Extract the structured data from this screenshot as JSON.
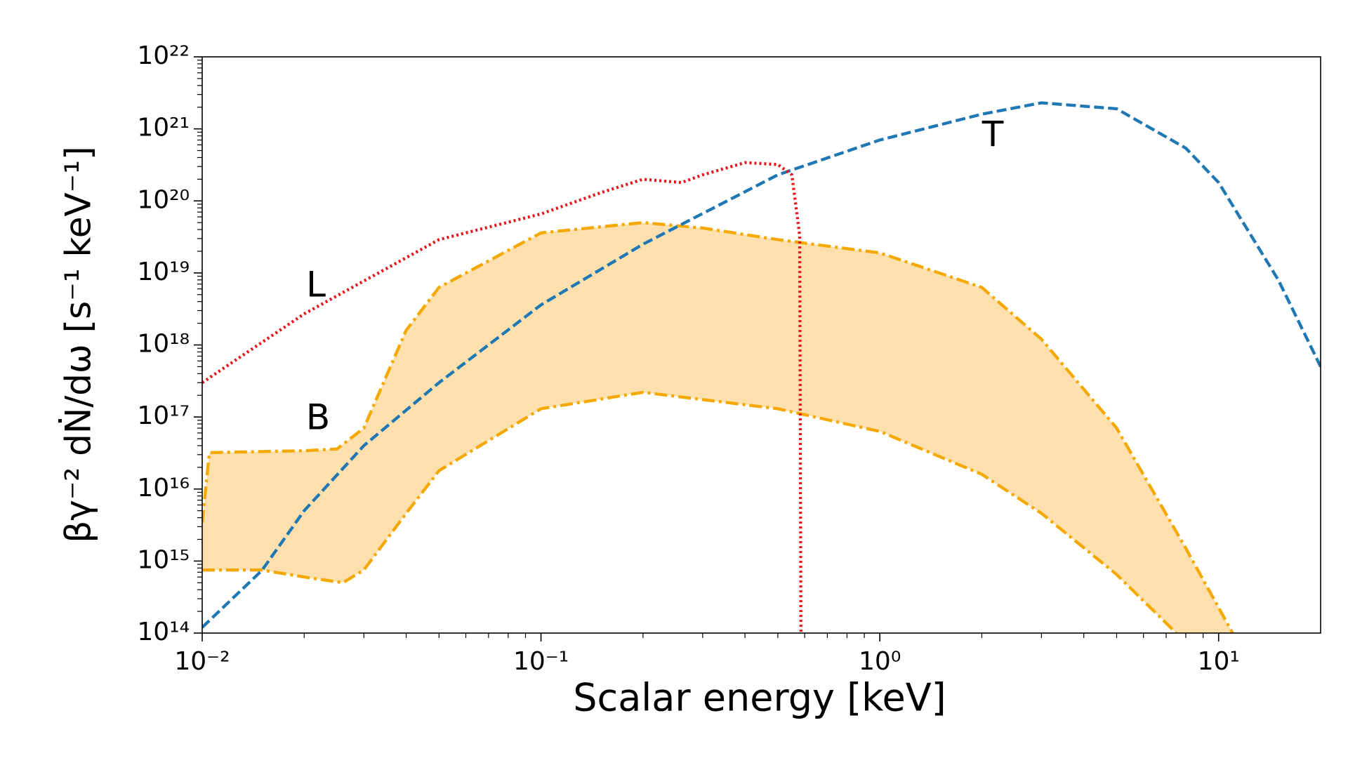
{
  "chart_data": {
    "type": "line",
    "x_label": "Scalar energy [keV]",
    "y_label": "βγ⁻² dṄ/dω [s⁻¹ keV⁻¹]",
    "x_scale": "log",
    "y_scale": "log",
    "xlim": [
      0.01,
      20
    ],
    "ylim": [
      100000000000000.0,
      1e+22
    ],
    "xticks": [
      {
        "value": 0.01,
        "label": "10⁻²"
      },
      {
        "value": 0.1,
        "label": "10⁻¹"
      },
      {
        "value": 1,
        "label": "10⁰"
      },
      {
        "value": 10,
        "label": "10¹"
      }
    ],
    "yticks": [
      {
        "value": 100000000000000.0,
        "label": "10¹⁴"
      },
      {
        "value": 1000000000000000.0,
        "label": "10¹⁵"
      },
      {
        "value": 1e+16,
        "label": "10¹⁶"
      },
      {
        "value": 1e+17,
        "label": "10¹⁷"
      },
      {
        "value": 1e+18,
        "label": "10¹⁸"
      },
      {
        "value": 1e+19,
        "label": "10¹⁹"
      },
      {
        "value": 1e+20,
        "label": "10²⁰"
      },
      {
        "value": 1e+21,
        "label": "10²¹"
      },
      {
        "value": 1e+22,
        "label": "10²²"
      }
    ],
    "band": {
      "fill": "#fde0ad",
      "color": "#f5a800",
      "style": "dashdot",
      "upper": {
        "x": [
          0.01,
          0.0105,
          0.02,
          0.025,
          0.03,
          0.04,
          0.05,
          0.1,
          0.2,
          0.3,
          0.5,
          1,
          2,
          3,
          5,
          8,
          11
        ],
        "values": [
          3400000000000000.0,
          3.2e+16,
          3.4e+16,
          3.6e+16,
          7e+16,
          1.6e+18,
          6.3e+18,
          3.6e+19,
          5e+19,
          4.2e+19,
          2.9e+19,
          1.9e+19,
          6.3e+18,
          1.2e+18,
          7e+16,
          1500000000000000.0,
          100000000000000.0
        ]
      },
      "lower": {
        "x": [
          0.01,
          0.015,
          0.02,
          0.026,
          0.03,
          0.04,
          0.05,
          0.1,
          0.2,
          0.5,
          1,
          2,
          3,
          5,
          7.5
        ],
        "values": [
          750000000000000.0,
          750000000000000.0,
          600000000000000.0,
          500000000000000.0,
          750000000000000.0,
          4600000000000000.0,
          1.8e+16,
          1.3e+17,
          2.2e+17,
          1.3e+17,
          6.3e+16,
          1.6e+16,
          4600000000000000.0,
          650000000000000.0,
          100000000000000.0
        ]
      }
    },
    "series": [
      {
        "color": "#1f77b4",
        "style": "dashed",
        "x": [
          0.01,
          0.015,
          0.02,
          0.03,
          0.05,
          0.1,
          0.2,
          0.5,
          1,
          2,
          3,
          5,
          8,
          10,
          15,
          20
        ],
        "values": [
          120000000000000.0,
          740000000000000.0,
          5000000000000000.0,
          4e+16,
          3e+17,
          3.6e+18,
          2.5e+19,
          2.3e+20,
          7e+20,
          1.6e+21,
          2.3e+21,
          1.9e+21,
          5.4e+20,
          1.8e+20,
          8e+18,
          5e+17
        ]
      },
      {
        "color": "#e8161b",
        "style": "dotted",
        "x": [
          0.01,
          0.02,
          0.05,
          0.1,
          0.15,
          0.2,
          0.26,
          0.3,
          0.4,
          0.5,
          0.55,
          0.58,
          0.585
        ],
        "values": [
          3e+17,
          2.7e+18,
          2.9e+19,
          6.6e+19,
          1.3e+20,
          2e+20,
          1.8e+20,
          2.3e+20,
          3.4e+20,
          3.2e+20,
          2.3e+20,
          3.3e+19,
          100000000000000.0
        ]
      }
    ],
    "annotations": [
      "T",
      "L",
      "B"
    ]
  }
}
